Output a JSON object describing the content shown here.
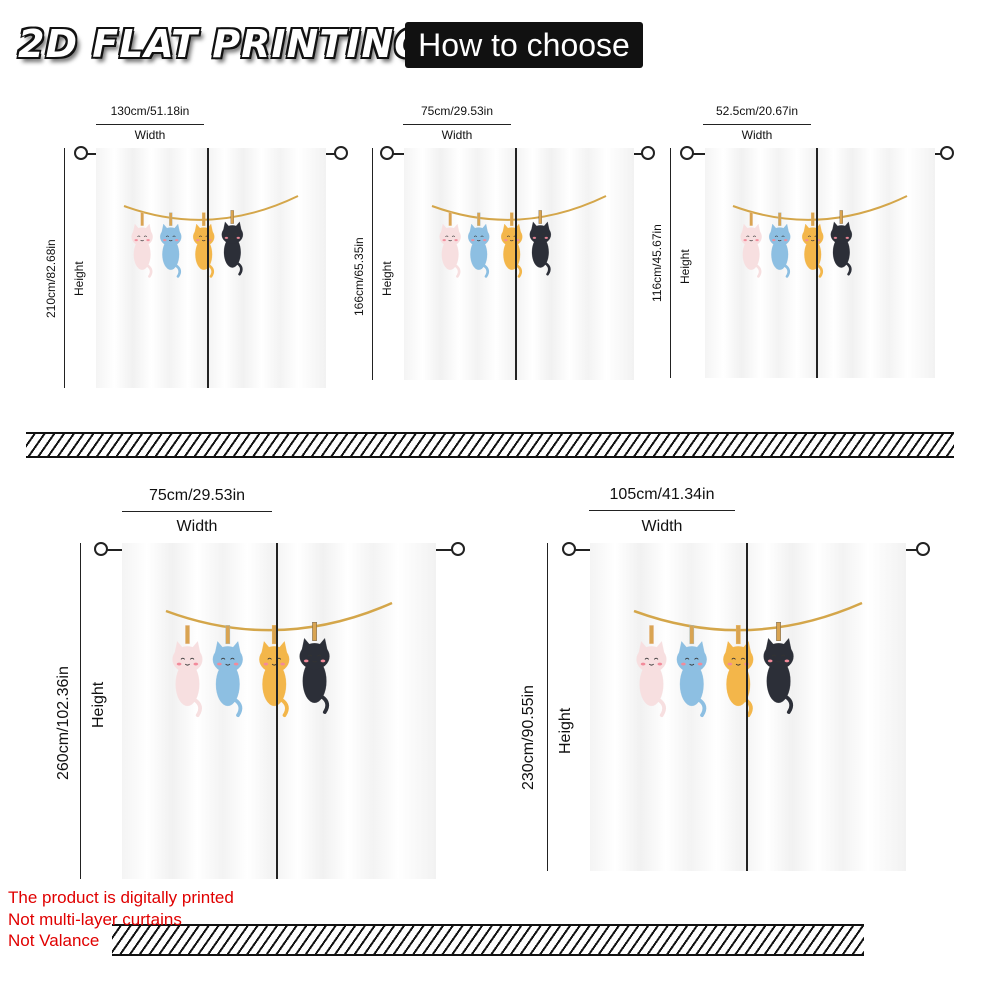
{
  "header": {
    "badge": "2D FLAT PRINTING",
    "button": "How to choose"
  },
  "labels": {
    "width": "Width",
    "height": "Height"
  },
  "panels": [
    {
      "width": "130cm/51.18in",
      "height": "210cm/82.68in"
    },
    {
      "width": "75cm/29.53in",
      "height": "166cm/65.35in"
    },
    {
      "width": "52.5cm/20.67in",
      "height": "116cm/45.67in"
    },
    {
      "width": "75cm/29.53in",
      "height": "260cm/102.36in"
    },
    {
      "width": "105cm/41.34in",
      "height": "230cm/90.55in"
    }
  ],
  "notes": {
    "line1": "The product is digitally printed",
    "line2": "Not multi-layer curtains",
    "line3": "Not Valance"
  },
  "colors": {
    "note": "#e00000",
    "cat_pink": "#f7dfe0",
    "cat_blue": "#8dbfe2",
    "cat_orange": "#f3b64a",
    "cat_black": "#2c2f38",
    "string": "#d4a64a"
  },
  "artwork": "four cats hanging from clothespins on a string"
}
